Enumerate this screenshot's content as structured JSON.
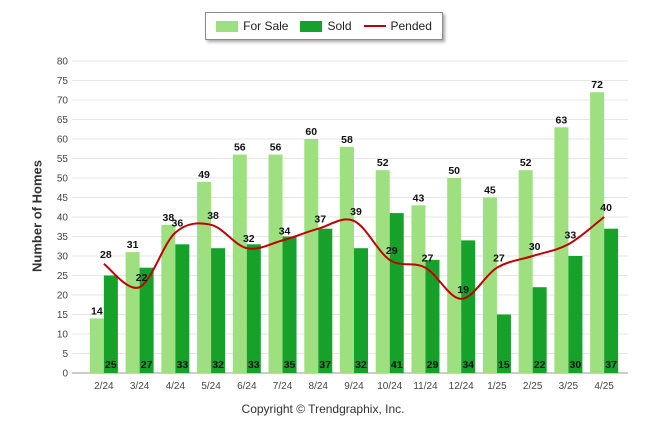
{
  "chart_data": {
    "type": "bar",
    "categories": [
      "2/24",
      "3/24",
      "4/24",
      "5/24",
      "6/24",
      "7/24",
      "8/24",
      "9/24",
      "10/24",
      "11/24",
      "12/24",
      "1/25",
      "2/25",
      "3/25",
      "4/25"
    ],
    "series": [
      {
        "name": "For Sale",
        "type": "bar",
        "color": "#9ee07f",
        "values": [
          14,
          31,
          38,
          49,
          56,
          56,
          60,
          58,
          52,
          43,
          50,
          45,
          52,
          63,
          72
        ]
      },
      {
        "name": "Sold",
        "type": "bar",
        "color": "#16a12b",
        "values": [
          25,
          27,
          33,
          32,
          33,
          35,
          37,
          32,
          41,
          29,
          34,
          15,
          22,
          30,
          37
        ]
      },
      {
        "name": "Pended",
        "type": "line",
        "color": "#c00000",
        "values": [
          28,
          22,
          36,
          38,
          32,
          34,
          37,
          39,
          29,
          27,
          19,
          27,
          30,
          33,
          40
        ]
      }
    ],
    "title": "",
    "xlabel": "",
    "ylabel": "Number of Homes",
    "ylim": [
      0,
      80
    ],
    "yticks": [
      0,
      5,
      10,
      15,
      20,
      25,
      30,
      35,
      40,
      45,
      50,
      55,
      60,
      65,
      70,
      75,
      80
    ],
    "grid": true,
    "legend_position": "top-center"
  },
  "footer": {
    "copyright": "Copyright © Trendgraphix, Inc."
  }
}
